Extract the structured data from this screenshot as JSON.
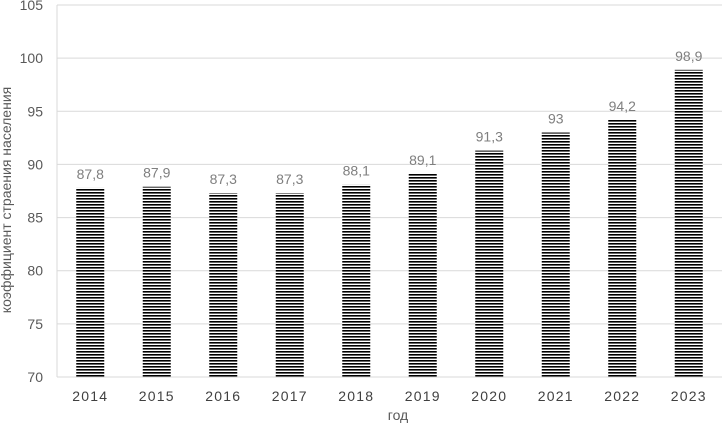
{
  "chart_data": {
    "type": "bar",
    "categories": [
      "2014",
      "2015",
      "2016",
      "2017",
      "2018",
      "2019",
      "2020",
      "2021",
      "2022",
      "2023"
    ],
    "values": [
      87.8,
      87.9,
      87.3,
      87.3,
      88.1,
      89.1,
      91.3,
      93,
      94.2,
      98.9
    ],
    "data_labels": [
      "87,8",
      "87,9",
      "87,3",
      "87,3",
      "88,1",
      "89,1",
      "91,3",
      "93",
      "94,2",
      "98,9"
    ],
    "title": "",
    "xlabel": "год",
    "ylabel": "коэффициент страения населения",
    "ylim": [
      70,
      105
    ],
    "yticks": [
      70,
      75,
      80,
      85,
      90,
      95,
      100,
      105
    ],
    "grid": "horizontal",
    "bar_fill": "horizontal black stripes",
    "colors": {
      "bar_stripe": "#000000",
      "grid": "#d9d9d9",
      "data_label": "#7f7f7f"
    }
  }
}
